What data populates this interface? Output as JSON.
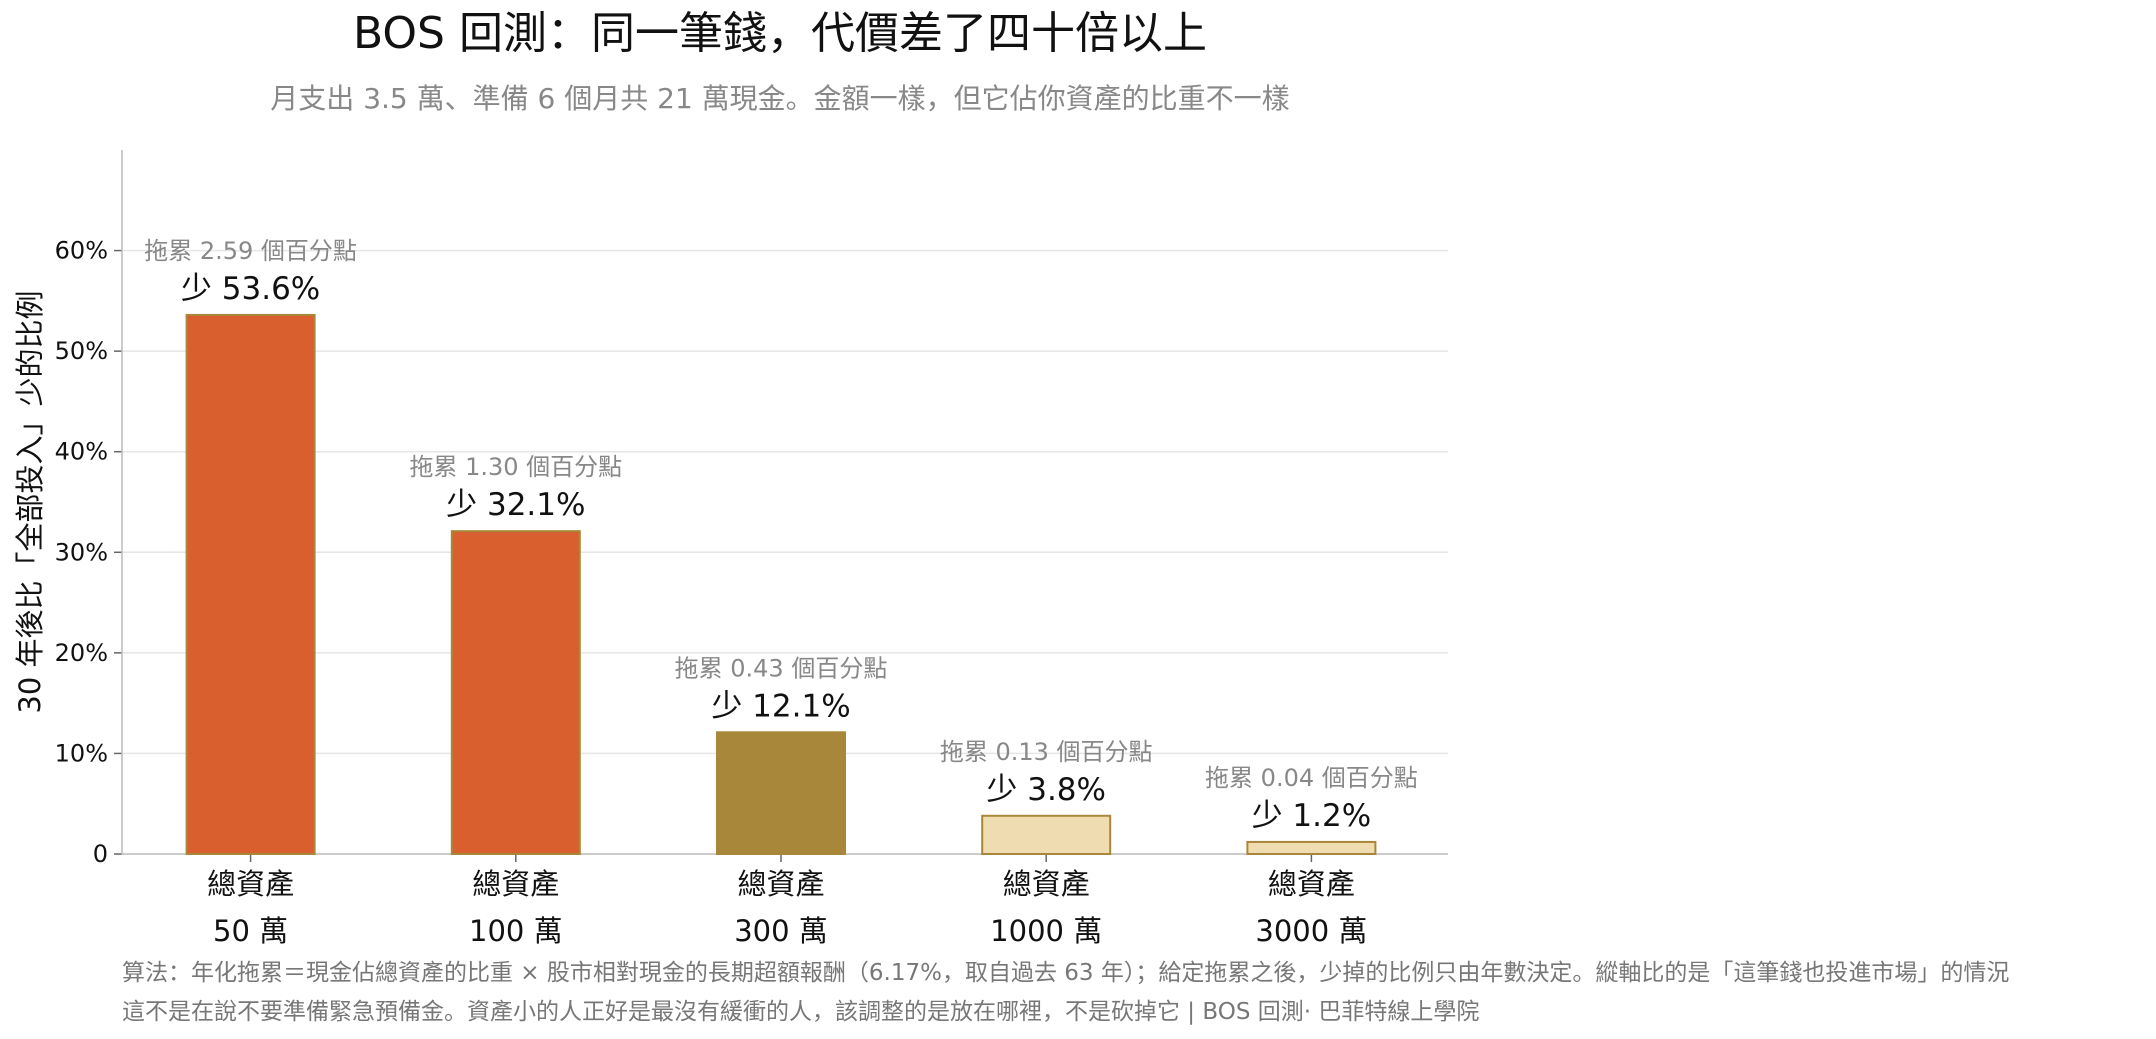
{
  "chart_data": {
    "type": "bar",
    "title": "BOS 回測：同一筆錢，代價差了四十倍以上",
    "subtitle": "月支出 3.5 萬、準備 6 個月共 21 萬現金。金額一樣，但它佔你資產的比重不一樣",
    "ylabel": "30 年後比「全部投入」少的比例",
    "xlabel": "",
    "ylim": [
      0,
      70
    ],
    "yticks": [
      {
        "value": 0,
        "label": "0"
      },
      {
        "value": 10,
        "label": "10%"
      },
      {
        "value": 20,
        "label": "20%"
      },
      {
        "value": 30,
        "label": "30%"
      },
      {
        "value": 40,
        "label": "40%"
      },
      {
        "value": 50,
        "label": "50%"
      },
      {
        "value": 60,
        "label": "60%"
      }
    ],
    "grid": true,
    "categories": [
      {
        "line1": "總資產",
        "line2": "50 萬"
      },
      {
        "line1": "總資產",
        "line2": "100 萬"
      },
      {
        "line1": "總資產",
        "line2": "300 萬"
      },
      {
        "line1": "總資產",
        "line2": "1000 萬"
      },
      {
        "line1": "總資產",
        "line2": "3000 萬"
      }
    ],
    "values": [
      53.6,
      32.1,
      12.1,
      3.8,
      1.2
    ],
    "value_labels": [
      "少 53.6%",
      "少 32.1%",
      "少 12.1%",
      "少 3.8%",
      "少 1.2%"
    ],
    "drag_labels": [
      "拖累 2.59 個百分點",
      "拖累 1.30 個百分點",
      "拖累 0.43 個百分點",
      "拖累 0.13 個百分點",
      "拖累 0.04 個百分點"
    ],
    "bar_colors": [
      "#d95f2e",
      "#d95f2e",
      "#a8873a",
      "#efdcb0",
      "#efdcb0"
    ],
    "bar_edge_color": "#a8873a"
  },
  "footnote": {
    "line1": "算法：年化拖累＝現金佔總資產的比重 × 股市相對現金的長期超額報酬（6.17%，取自過去 63 年）；給定拖累之後，少掉的比例只由年數決定。縱軸比的是「這筆錢也投進市場」的情況",
    "line2": "這不是在說不要準備緊急預備金。資產小的人正好是最沒有緩衝的人，該調整的是放在哪裡，不是砍掉它 | BOS 回測· 巴菲特線上學院"
  }
}
